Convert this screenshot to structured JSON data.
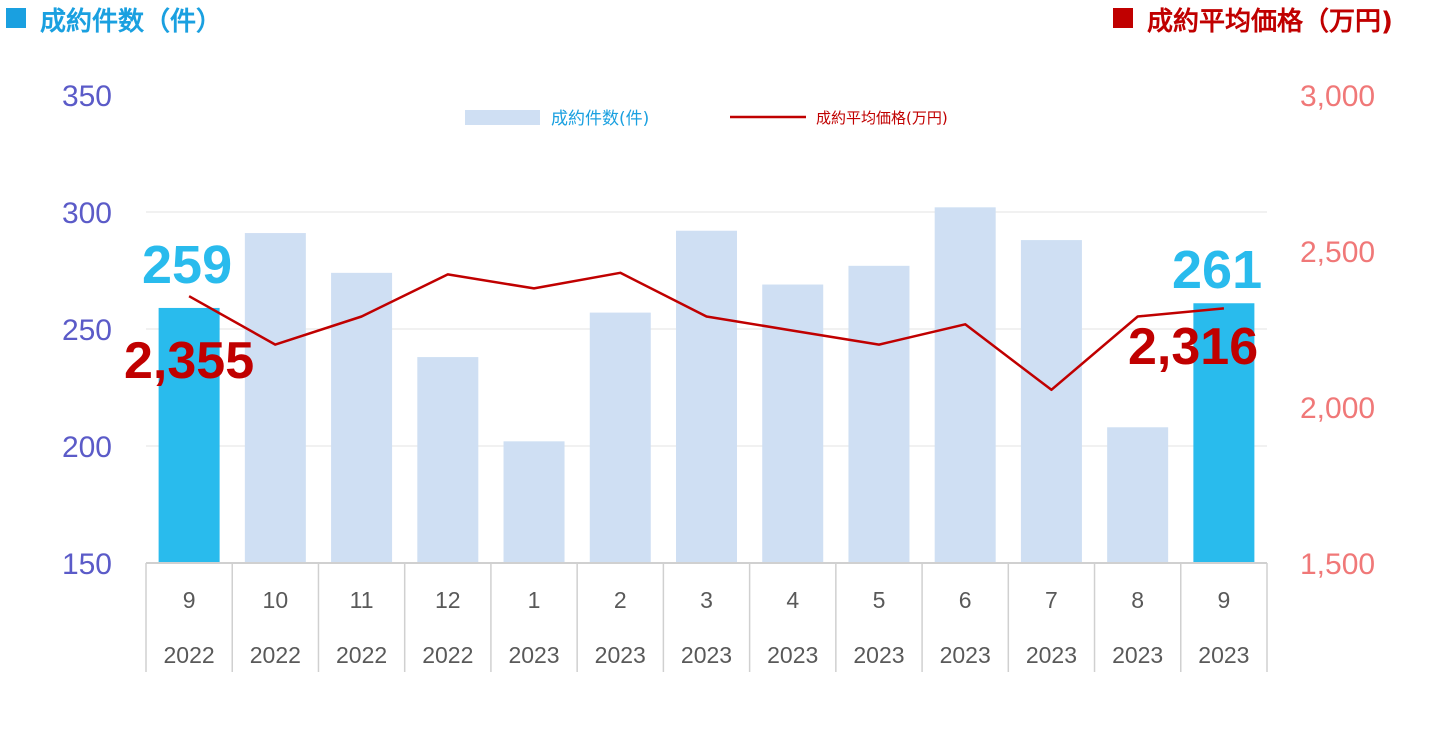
{
  "header": {
    "left_title": "成約件数（件）",
    "right_title": "成約平均価格（万円)",
    "left_color": "#1aa0e0",
    "right_color": "#c00000"
  },
  "legend": {
    "bar_label": "成約件数(件)",
    "line_label": "成約平均価格(万円)"
  },
  "colors": {
    "bar_normal": "#cfdff3",
    "bar_highlight": "#29bbed",
    "line": "#c00000",
    "left_axis": "#5b5bc8",
    "right_axis": "#f07878",
    "grid": "#e3e3e3",
    "cat_border": "#d0d0d0"
  },
  "chart_data": {
    "type": "bar",
    "categories": [
      "9",
      "10",
      "11",
      "12",
      "1",
      "2",
      "3",
      "4",
      "5",
      "6",
      "7",
      "8",
      "9"
    ],
    "years": [
      "2022",
      "2022",
      "2022",
      "2022",
      "2023",
      "2023",
      "2023",
      "2023",
      "2023",
      "2023",
      "2023",
      "2023",
      "2023"
    ],
    "series": [
      {
        "name": "成約件数(件)",
        "type": "bar",
        "axis": "left",
        "values": [
          259,
          291,
          274,
          238,
          202,
          257,
          292,
          269,
          277,
          302,
          288,
          208,
          261
        ],
        "highlight": [
          0,
          12
        ]
      },
      {
        "name": "成約平均価格(万円)",
        "type": "line",
        "axis": "right",
        "values": [
          2355,
          2200,
          2290,
          2425,
          2380,
          2430,
          2290,
          2245,
          2200,
          2265,
          2055,
          2290,
          2316
        ]
      }
    ],
    "y_left": {
      "min": 150,
      "max": 350,
      "ticks": [
        "150",
        "200",
        "250",
        "300",
        "350"
      ]
    },
    "y_right": {
      "min": 1500,
      "max": 3000,
      "ticks": [
        "1,500",
        "2,000",
        "2,500",
        "3,000"
      ]
    },
    "annotations": {
      "bar_first": "259",
      "bar_last": "261",
      "line_first": "2,355",
      "line_last": "2,316"
    },
    "grid": true,
    "legend_position": "top-center"
  }
}
